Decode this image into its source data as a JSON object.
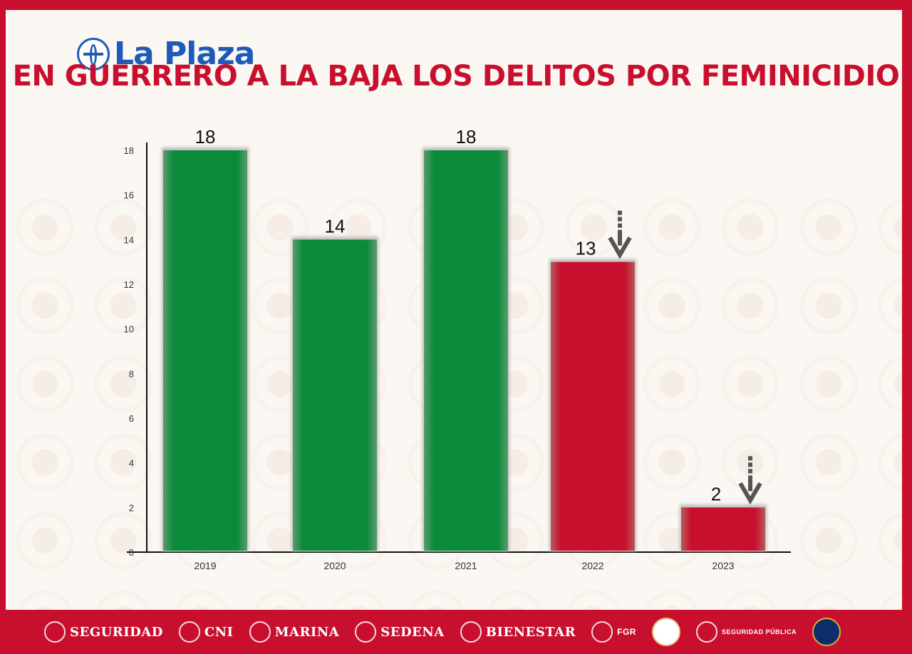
{
  "header": {
    "logo_text": "La Plaza",
    "title": "EN GUERRERO A LA BAJA LOS DELITOS POR FEMINICIDIO"
  },
  "colors": {
    "increase_bar": "#0b8a3b",
    "decrease_bar": "#c8102e",
    "frame": "#c8102e",
    "logo": "#1e5bb8"
  },
  "chart_data": {
    "type": "bar",
    "title": "EN GUERRERO A LA BAJA LOS DELITOS POR FEMINICIDIO",
    "categories": [
      "2019",
      "2020",
      "2021",
      "2022",
      "2023"
    ],
    "values": [
      18,
      14,
      18,
      13,
      2
    ],
    "data_labels": [
      "18",
      "14",
      "18",
      "13",
      "2"
    ],
    "bar_colors": [
      "#0b8a3b",
      "#0b8a3b",
      "#0b8a3b",
      "#c8102e",
      "#c8102e"
    ],
    "down_arrows": [
      false,
      false,
      false,
      true,
      true
    ],
    "y_ticks": [
      "0",
      "2",
      "4",
      "6",
      "8",
      "10",
      "12",
      "14",
      "16",
      "18"
    ],
    "ylim": [
      0,
      18
    ],
    "xlabel": "",
    "ylabel": "",
    "grid": false,
    "legend": "none"
  },
  "footer": {
    "agencies": [
      {
        "name": "SEGURIDAD",
        "icon": "eagle-seal-icon"
      },
      {
        "name": "CNI",
        "icon": "eagle-seal-icon"
      },
      {
        "name": "MARINA",
        "icon": "eagle-seal-icon"
      },
      {
        "name": "SEDENA",
        "icon": "eagle-seal-icon"
      },
      {
        "name": "BIENESTAR",
        "icon": "eagle-seal-icon"
      },
      {
        "name": "FGR",
        "icon": "eagle-seal-icon"
      }
    ],
    "ssp_name": "SEGURIDAD PÚBLICA"
  }
}
